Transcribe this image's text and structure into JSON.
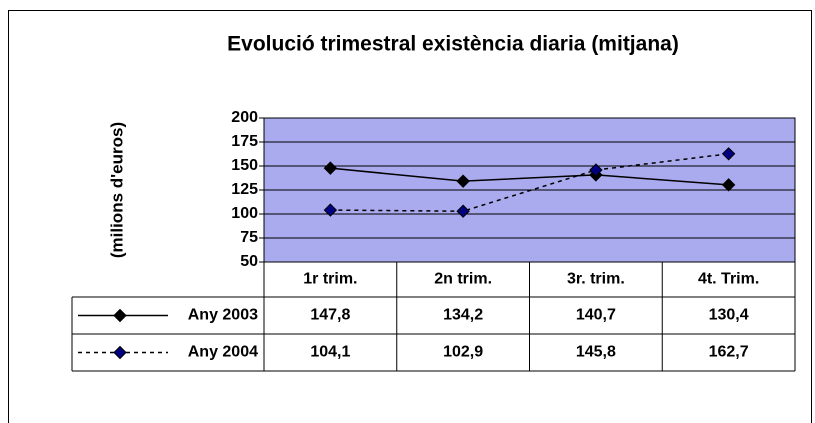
{
  "chart_data": {
    "type": "line",
    "title": "Evolució trimestral existència diaria (mitjana)",
    "ylabel": "(milions d'euros)",
    "categories": [
      "1r trim.",
      "2n trim.",
      "3r. trim.",
      "4t. Trim."
    ],
    "series": [
      {
        "name": "Any 2003",
        "color": "#000000",
        "line_style": "solid",
        "values": [
          147.8,
          134.2,
          140.7,
          130.4
        ],
        "value_labels": [
          "147,8",
          "134,2",
          "140,7",
          "130,4"
        ]
      },
      {
        "name": "Any 2004",
        "color": "#000080",
        "line_style": "dashed",
        "values": [
          104.1,
          102.9,
          145.8,
          162.7
        ],
        "value_labels": [
          "104,1",
          "102,9",
          "145,8",
          "162,7"
        ]
      }
    ],
    "ylim": [
      50,
      200
    ],
    "yticks": [
      50,
      75,
      100,
      125,
      150,
      175,
      200
    ],
    "grid": true,
    "plot_background": "#aaaaee"
  }
}
